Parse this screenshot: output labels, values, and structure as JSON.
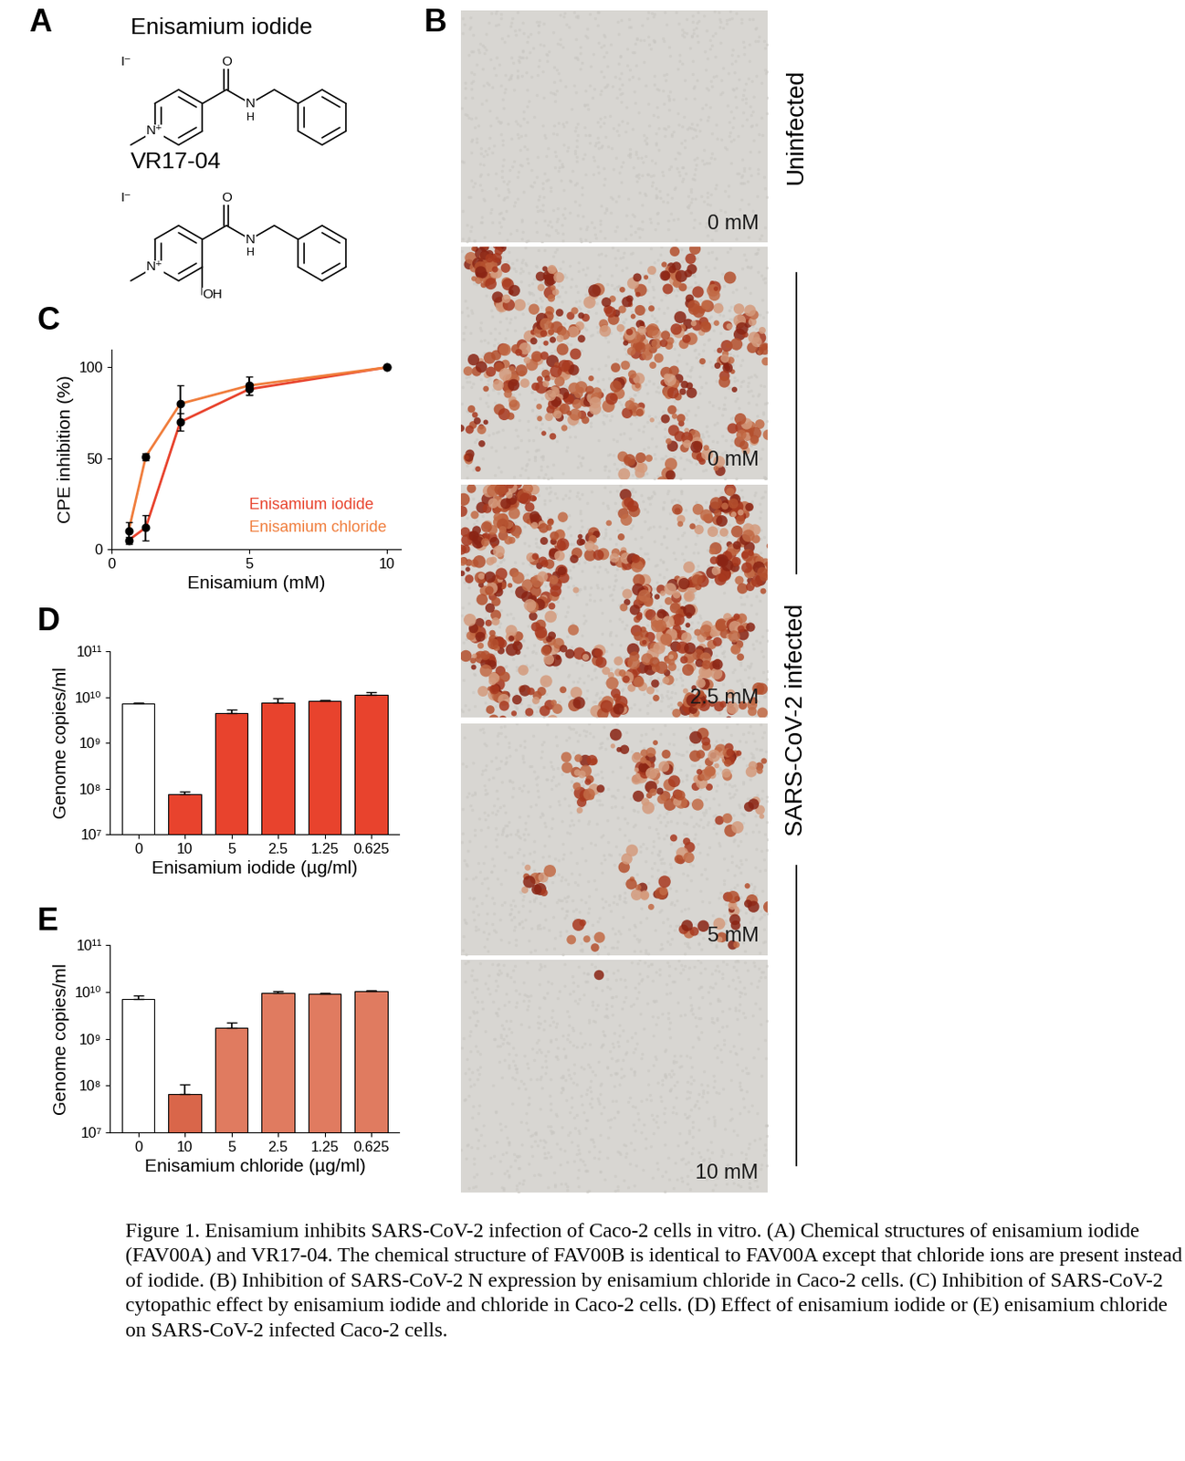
{
  "panel_labels": [
    "A",
    "B",
    "C",
    "D",
    "E"
  ],
  "structures": [
    {
      "name": "Enisamium iodide",
      "counterion": "I⁻",
      "ring_n": "N⁺",
      "carbonyl_o": "O",
      "amide_n": "N",
      "amide_h": "H"
    },
    {
      "name": "VR17-04",
      "counterion": "I⁻",
      "ring_n": "N⁺",
      "carbonyl_o": "O",
      "amide_n": "N",
      "amide_h": "H",
      "hydroxyl": "OH"
    }
  ],
  "micrographs": {
    "panels": [
      "0 mM",
      "0 mM",
      "2.5 mM",
      "5 mM",
      "10 mM"
    ],
    "groups": [
      {
        "label": "Uninfected",
        "panels": [
          0
        ]
      },
      {
        "label": "SARS-CoV-2 infected",
        "panels": [
          1,
          2,
          3,
          4
        ]
      }
    ]
  },
  "chart_data": [
    {
      "type": "line",
      "x_label": "Enisamium (mM)",
      "y_label": "CPE inhibition (%)",
      "x": [
        0.625,
        1.25,
        2.5,
        5,
        10
      ],
      "series": [
        {
          "name": "Enisamium iodide",
          "color": "#e8432d",
          "marker": "o",
          "values": [
            5,
            12,
            70,
            88,
            100
          ],
          "errors": [
            2,
            7,
            5,
            3,
            0
          ]
        },
        {
          "name": "Enisamium chloride",
          "color": "#f07d3c",
          "marker": "o",
          "values": [
            10,
            51,
            80,
            90,
            100
          ],
          "errors": [
            5,
            2,
            10,
            5,
            0
          ]
        }
      ],
      "xlim": [
        0,
        10.5
      ],
      "ylim": [
        0,
        110
      ],
      "xticks": [
        0,
        5,
        10
      ],
      "yticks": [
        0,
        50,
        100
      ],
      "legend": "lower right"
    },
    {
      "type": "bar",
      "x_label": "Enisamium iodide (µg/ml)",
      "y_label": "Genome copies/ml",
      "categories": [
        "0",
        "10",
        "5",
        "2.5",
        "1.25",
        "0.625"
      ],
      "values": [
        7200000000,
        75000000,
        4500000000,
        7500000000,
        8200000000,
        11500000000
      ],
      "errors": [
        300000000,
        12000000,
        900000000,
        2000000000,
        600000000,
        1500000000
      ],
      "colors": [
        "#ffffff",
        "#e8432d",
        "#e8432d",
        "#e8432d",
        "#e8432d",
        "#e8432d"
      ],
      "log": "y",
      "ylim": [
        10000000,
        100000000000
      ],
      "yticks": [
        {
          "value": 10000000,
          "label": "10⁷"
        },
        {
          "value": 100000000,
          "label": "10⁸"
        },
        {
          "value": 1000000000,
          "label": "10⁹"
        },
        {
          "value": 10000000000,
          "label": "10¹⁰"
        },
        {
          "value": 100000000000,
          "label": "10¹¹"
        }
      ]
    },
    {
      "type": "bar",
      "x_label": "Enisamium chloride (µg/ml)",
      "y_label": "Genome copies/ml",
      "categories": [
        "0",
        "10",
        "5",
        "2.5",
        "1.25",
        "0.625"
      ],
      "values": [
        7200000000,
        65000000,
        1700000000,
        9500000000,
        9200000000,
        10500000000
      ],
      "errors": [
        1200000000,
        40000000,
        500000000,
        1000000000,
        300000000,
        600000000
      ],
      "colors": [
        "#ffffff",
        "#d9664a",
        "#e07b60",
        "#e07b60",
        "#e07b60",
        "#e07b60"
      ],
      "log": "y",
      "ylim": [
        10000000,
        100000000000
      ],
      "yticks": [
        {
          "value": 10000000,
          "label": "10⁷"
        },
        {
          "value": 100000000,
          "label": "10⁸"
        },
        {
          "value": 1000000000,
          "label": "10⁹"
        },
        {
          "value": 10000000000,
          "label": "10¹⁰"
        },
        {
          "value": 100000000000,
          "label": "10¹¹"
        }
      ]
    }
  ],
  "caption": "Figure 1. Enisamium inhibits SARS-CoV-2 infection of Caco-2 cells in vitro. (A) Chemical structures of enisamium iodide (FAV00A) and VR17-04. The chemical structure of FAV00B is identical to FAV00A except that chloride ions are present instead of iodide. (B) Inhibition of SARS-CoV-2 N expression by enisamium chloride in Caco-2 cells. (C) Inhibition of SARS-CoV-2 cytopathic effect by enisamium iodide and chloride in Caco-2 cells. (D) Effect of enisamium iodide or (E) enisamium chloride on SARS-CoV-2 infected Caco-2 cells."
}
